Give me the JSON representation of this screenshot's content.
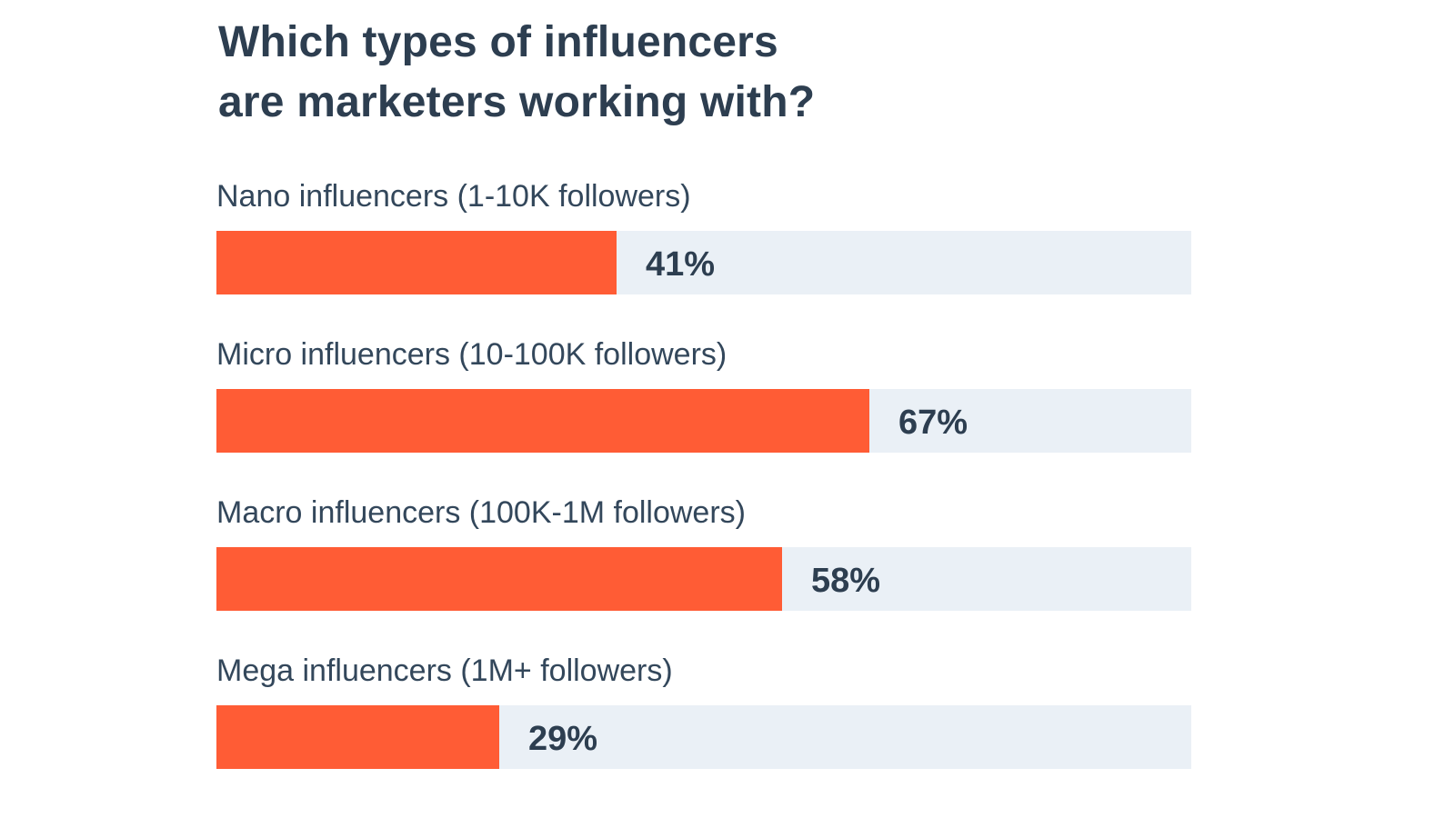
{
  "chart_data": {
    "type": "bar",
    "orientation": "horizontal",
    "title_lines": [
      "Which types of influencers",
      "are marketers working with?"
    ],
    "categories": [
      "Nano influencers (1-10K followers)",
      "Micro influencers (10-100K followers)",
      "Macro influencers (100K-1M followers)",
      "Mega influencers (1M+ followers)"
    ],
    "values": [
      41,
      67,
      58,
      29
    ],
    "value_labels": [
      "41%",
      "67%",
      "58%",
      "29%"
    ],
    "xlim": [
      0,
      100
    ],
    "grid": false,
    "legend": "none",
    "colors": {
      "bar": "#ff5c35",
      "track": "#eaf0f6",
      "text": "#2d3e50"
    }
  }
}
